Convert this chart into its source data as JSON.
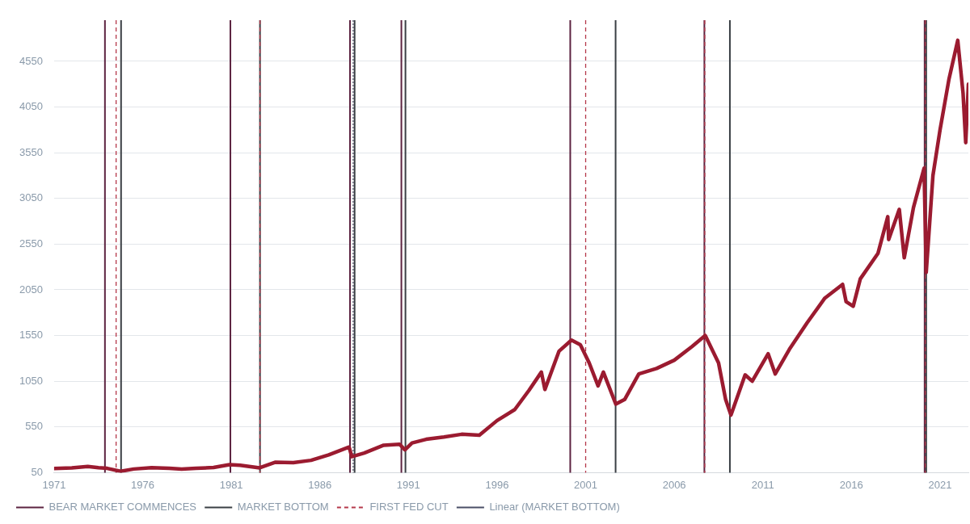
{
  "chart_data": {
    "type": "line",
    "x": [
      1971.0,
      1972.0,
      1972.9,
      1973.5,
      1974.0,
      1974.75,
      1975.5,
      1976.5,
      1977.5,
      1978.2,
      1979.0,
      1980.0,
      1980.9,
      1981.5,
      1982.6,
      1983.5,
      1984.5,
      1985.5,
      1986.5,
      1987.65,
      1987.8,
      1988.5,
      1989.6,
      1990.5,
      1990.8,
      1991.2,
      1992.0,
      1993.0,
      1994.0,
      1995.0,
      1996.0,
      1997.0,
      1997.8,
      1998.5,
      1998.7,
      1999.5,
      2000.2,
      2000.7,
      2001.2,
      2001.7,
      2002.0,
      2002.7,
      2003.2,
      2004.0,
      2005.0,
      2006.0,
      2007.0,
      2007.75,
      2008.5,
      2008.9,
      2009.2,
      2010.0,
      2010.4,
      2011.3,
      2011.7,
      2012.5,
      2013.5,
      2014.5,
      2015.5,
      2015.7,
      2016.1,
      2016.5,
      2017.5,
      2018.05,
      2018.1,
      2018.7,
      2018.98,
      2019.5,
      2020.1,
      2020.22,
      2020.6,
      2021.0,
      2021.5,
      2022.0,
      2022.3,
      2022.45,
      2022.6
    ],
    "series": [
      {
        "color": "#9b1b30",
        "values": [
          95,
          103,
          118,
          105,
          97,
          65,
          90,
          105,
          98,
          88,
          97,
          106,
          138,
          130,
          103,
          165,
          160,
          185,
          245,
          330,
          225,
          265,
          350,
          360,
          300,
          375,
          415,
          440,
          470,
          460,
          620,
          740,
          950,
          1150,
          960,
          1380,
          1500,
          1450,
          1250,
          1000,
          1150,
          800,
          850,
          1130,
          1190,
          1280,
          1430,
          1550,
          1250,
          850,
          680,
          1120,
          1050,
          1350,
          1130,
          1400,
          1690,
          1960,
          2110,
          1920,
          1870,
          2170,
          2450,
          2850,
          2600,
          2930,
          2400,
          2950,
          3380,
          2240,
          3300,
          3800,
          4350,
          4780,
          4200,
          3660,
          4300
        ]
      }
    ],
    "ref_lines": [
      {
        "axis": "x",
        "value": 1973.87,
        "label": "BEAR MARKET COMMENCES",
        "color": "#5c2340",
        "line_style": "solid"
      },
      {
        "axis": "x",
        "value": 1980.95,
        "color": "#5c2340",
        "line_style": "solid"
      },
      {
        "axis": "x",
        "value": 1987.7,
        "color": "#5c2340",
        "line_style": "solid"
      },
      {
        "axis": "x",
        "value": 1990.6,
        "color": "#5c2340",
        "line_style": "solid"
      },
      {
        "axis": "x",
        "value": 2000.13,
        "color": "#5c2340",
        "line_style": "solid"
      },
      {
        "axis": "x",
        "value": 2007.7,
        "color": "#5c2340",
        "line_style": "solid"
      },
      {
        "axis": "x",
        "value": 2020.13,
        "color": "#5c2340",
        "line_style": "solid"
      },
      {
        "axis": "x",
        "value": 1974.78,
        "label": "MARKET BOTTOM",
        "color": "#3a3f44",
        "line_style": "solid"
      },
      {
        "axis": "x",
        "value": 1982.62,
        "color": "#3a3f44",
        "line_style": "solid"
      },
      {
        "axis": "x",
        "value": 1987.96,
        "color": "#3a3f44",
        "line_style": "solid"
      },
      {
        "axis": "x",
        "value": 1990.83,
        "color": "#3a3f44",
        "line_style": "solid"
      },
      {
        "axis": "x",
        "value": 2002.69,
        "color": "#3a3f44",
        "line_style": "solid"
      },
      {
        "axis": "x",
        "value": 2009.14,
        "color": "#3a3f44",
        "line_style": "solid"
      },
      {
        "axis": "x",
        "value": 2020.22,
        "color": "#3a3f44",
        "line_style": "solid"
      },
      {
        "axis": "x",
        "value": 1974.5,
        "label": "FIRST FED CUT",
        "color": "#b5384a",
        "line_style": "dashed"
      },
      {
        "axis": "x",
        "value": 1982.62,
        "color": "#b5384a",
        "line_style": "dashed"
      },
      {
        "axis": "x",
        "value": 2001.0,
        "color": "#b5384a",
        "line_style": "dashed"
      },
      {
        "axis": "x",
        "value": 2007.72,
        "color": "#b5384a",
        "line_style": "dashed"
      },
      {
        "axis": "x",
        "value": 2020.17,
        "color": "#b5384a",
        "line_style": "dashed"
      },
      {
        "axis": "x",
        "value": 1987.88,
        "label": "Linear (MARKET BOTTOM)",
        "color": "#4a4f66",
        "line_style": "dotted"
      }
    ],
    "xlim": [
      1971,
      2022.6
    ],
    "xticks": [
      1971,
      1976,
      1981,
      1986,
      1991,
      1996,
      2001,
      2006,
      2011,
      2016,
      2021
    ],
    "ylim": [
      50,
      5000
    ],
    "yticks": [
      50,
      550,
      1050,
      1550,
      2050,
      2550,
      3050,
      3550,
      4050,
      4550
    ],
    "grid": "y",
    "legend": "bottom",
    "marker": "none",
    "line_style": "solid"
  }
}
